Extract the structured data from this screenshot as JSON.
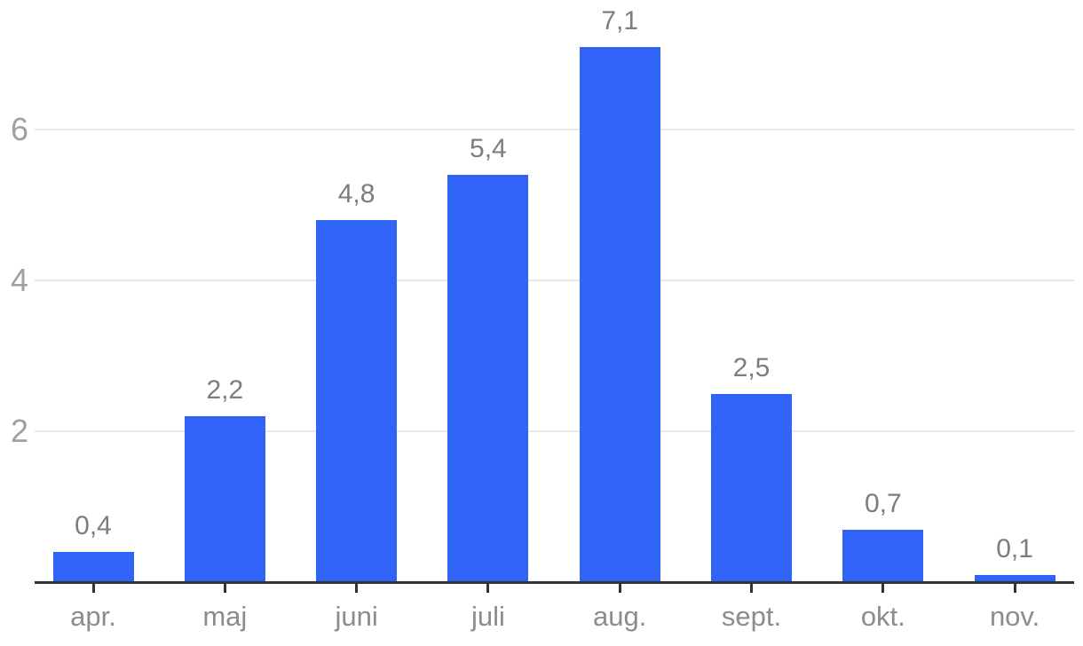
{
  "chart_data": {
    "type": "bar",
    "categories": [
      "apr.",
      "maj",
      "juni",
      "juli",
      "aug.",
      "sept.",
      "okt.",
      "nov."
    ],
    "values": [
      0.4,
      2.2,
      4.8,
      5.4,
      7.1,
      2.5,
      0.7,
      0.1
    ],
    "value_labels": [
      "0,4",
      "2,2",
      "4,8",
      "5,4",
      "7,1",
      "2,5",
      "0,7",
      "0,1"
    ],
    "title": "",
    "xlabel": "",
    "ylabel": "",
    "ylim": [
      0,
      7.7
    ],
    "yticks": [
      2,
      4,
      6
    ],
    "ytick_labels": [
      "2",
      "4",
      "6"
    ],
    "grid": true,
    "legend": false,
    "colors": {
      "bar": "#2f64f7",
      "gridline": "#e8e8e8",
      "axis_line": "#303338",
      "value_label": "#7d7d7d",
      "x_label": "#8c8c8c",
      "y_label": "#a0a0a0",
      "background": "#ffffff"
    }
  }
}
